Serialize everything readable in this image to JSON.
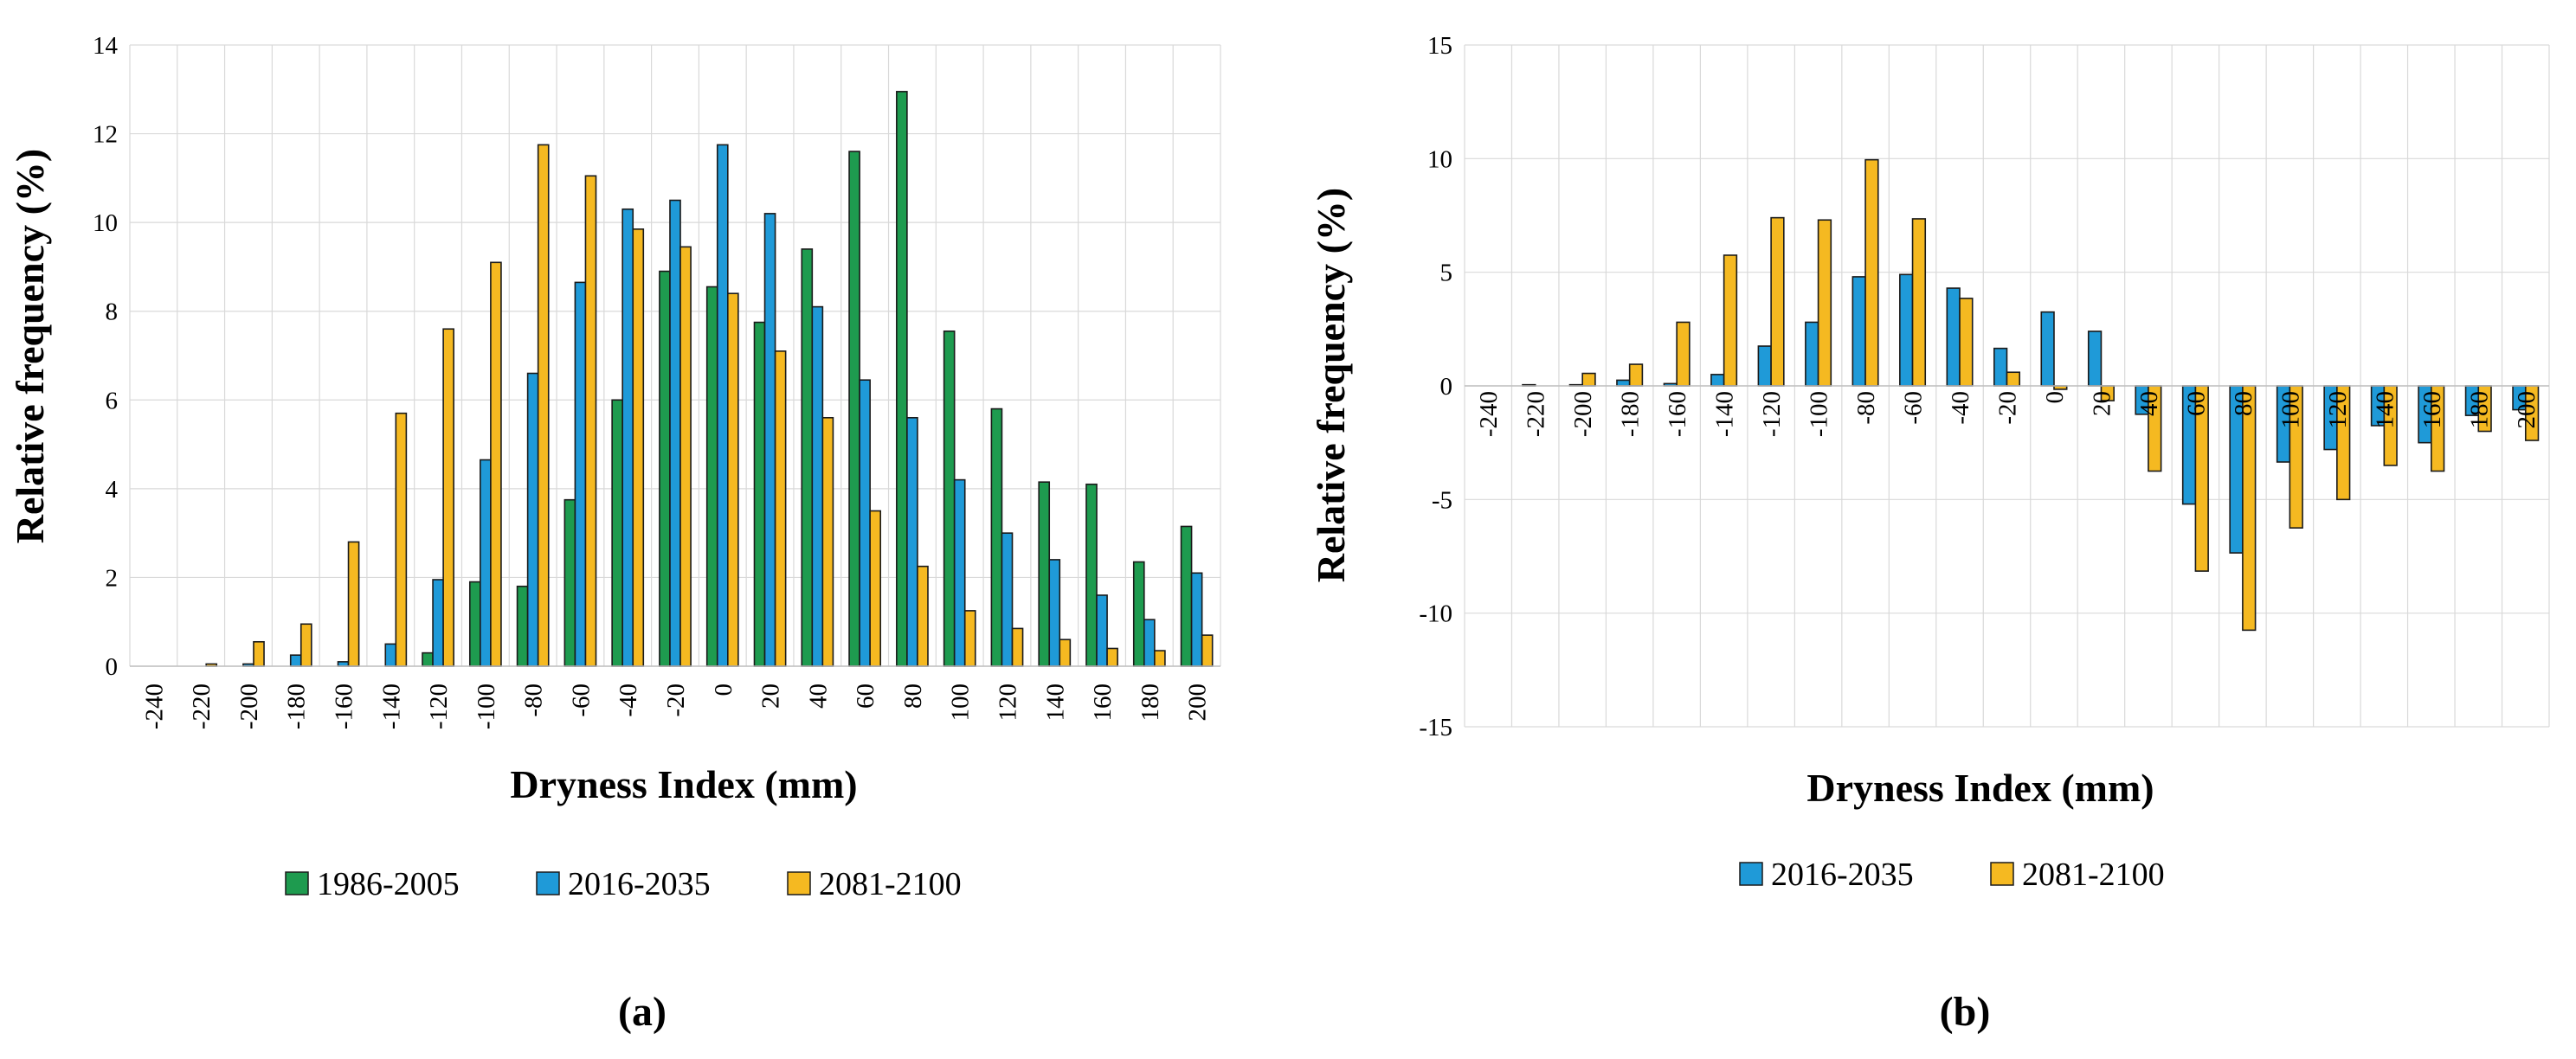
{
  "chart_data": [
    {
      "id": "a",
      "type": "bar",
      "panel_label": "(a)",
      "xlabel": "Dryness Index (mm)",
      "ylabel": "Relative frequency (%)",
      "ylim": [
        0,
        14
      ],
      "yticks": [
        0,
        2,
        4,
        6,
        8,
        10,
        12,
        14
      ],
      "grid": true,
      "legend_position": "bottom",
      "categories": [
        "-240",
        "-220",
        "-200",
        "-180",
        "-160",
        "-140",
        "-120",
        "-100",
        "-80",
        "-60",
        "-40",
        "-20",
        "0",
        "20",
        "40",
        "60",
        "80",
        "100",
        "120",
        "140",
        "160",
        "180",
        "200"
      ],
      "series": [
        {
          "name": "1986-2005",
          "color": "#1e9b4f",
          "values": [
            0,
            0,
            0,
            0,
            0,
            0,
            0.3,
            1.9,
            1.8,
            3.75,
            6.0,
            8.9,
            8.55,
            7.75,
            9.4,
            11.6,
            12.95,
            7.55,
            5.8,
            4.15,
            4.1,
            2.35,
            3.15
          ]
        },
        {
          "name": "2016-2035",
          "color": "#1f9ad8",
          "values": [
            0,
            0,
            0.05,
            0.25,
            0.1,
            0.5,
            1.95,
            4.65,
            6.6,
            8.65,
            10.3,
            10.5,
            11.75,
            10.2,
            8.1,
            6.45,
            5.6,
            4.2,
            3.0,
            2.4,
            1.6,
            1.05,
            2.1
          ]
        },
        {
          "name": "2081-2100",
          "color": "#f5b921",
          "values": [
            0,
            0.05,
            0.55,
            0.95,
            2.8,
            5.7,
            7.6,
            9.1,
            11.75,
            11.05,
            9.85,
            9.45,
            8.4,
            7.1,
            5.6,
            3.5,
            2.25,
            1.25,
            0.85,
            0.6,
            0.4,
            0.35,
            0.7
          ]
        }
      ]
    },
    {
      "id": "b",
      "type": "bar",
      "panel_label": "(b)",
      "xlabel": "Dryness Index (mm)",
      "ylabel": "Relative frequency (%)",
      "ylim": [
        -15,
        15
      ],
      "yticks": [
        -15,
        -10,
        -5,
        0,
        5,
        10,
        15
      ],
      "grid": true,
      "legend_position": "bottom",
      "categories": [
        "-240",
        "-220",
        "-200",
        "-180",
        "-160",
        "-140",
        "-120",
        "-100",
        "-80",
        "-60",
        "-40",
        "-20",
        "0",
        "20",
        "40",
        "60",
        "80",
        "100",
        "120",
        "140",
        "160",
        "180",
        "200"
      ],
      "series": [
        {
          "name": "2016-2035",
          "color": "#1f9ad8",
          "values": [
            0,
            0.05,
            0.05,
            0.25,
            0.1,
            0.5,
            1.75,
            2.8,
            4.8,
            4.9,
            4.3,
            1.65,
            3.25,
            2.4,
            -1.25,
            -5.2,
            -7.35,
            -3.35,
            -2.8,
            -1.75,
            -2.5,
            -1.3,
            -1.05
          ]
        },
        {
          "name": "2081-2100",
          "color": "#f5b921",
          "values": [
            0,
            0,
            0.55,
            0.95,
            2.8,
            5.75,
            7.4,
            7.3,
            9.95,
            7.35,
            3.85,
            0.6,
            -0.15,
            -0.65,
            -3.75,
            -8.15,
            -10.75,
            -6.25,
            -5.0,
            -3.5,
            -3.75,
            -2.0,
            -2.4
          ]
        }
      ]
    }
  ]
}
